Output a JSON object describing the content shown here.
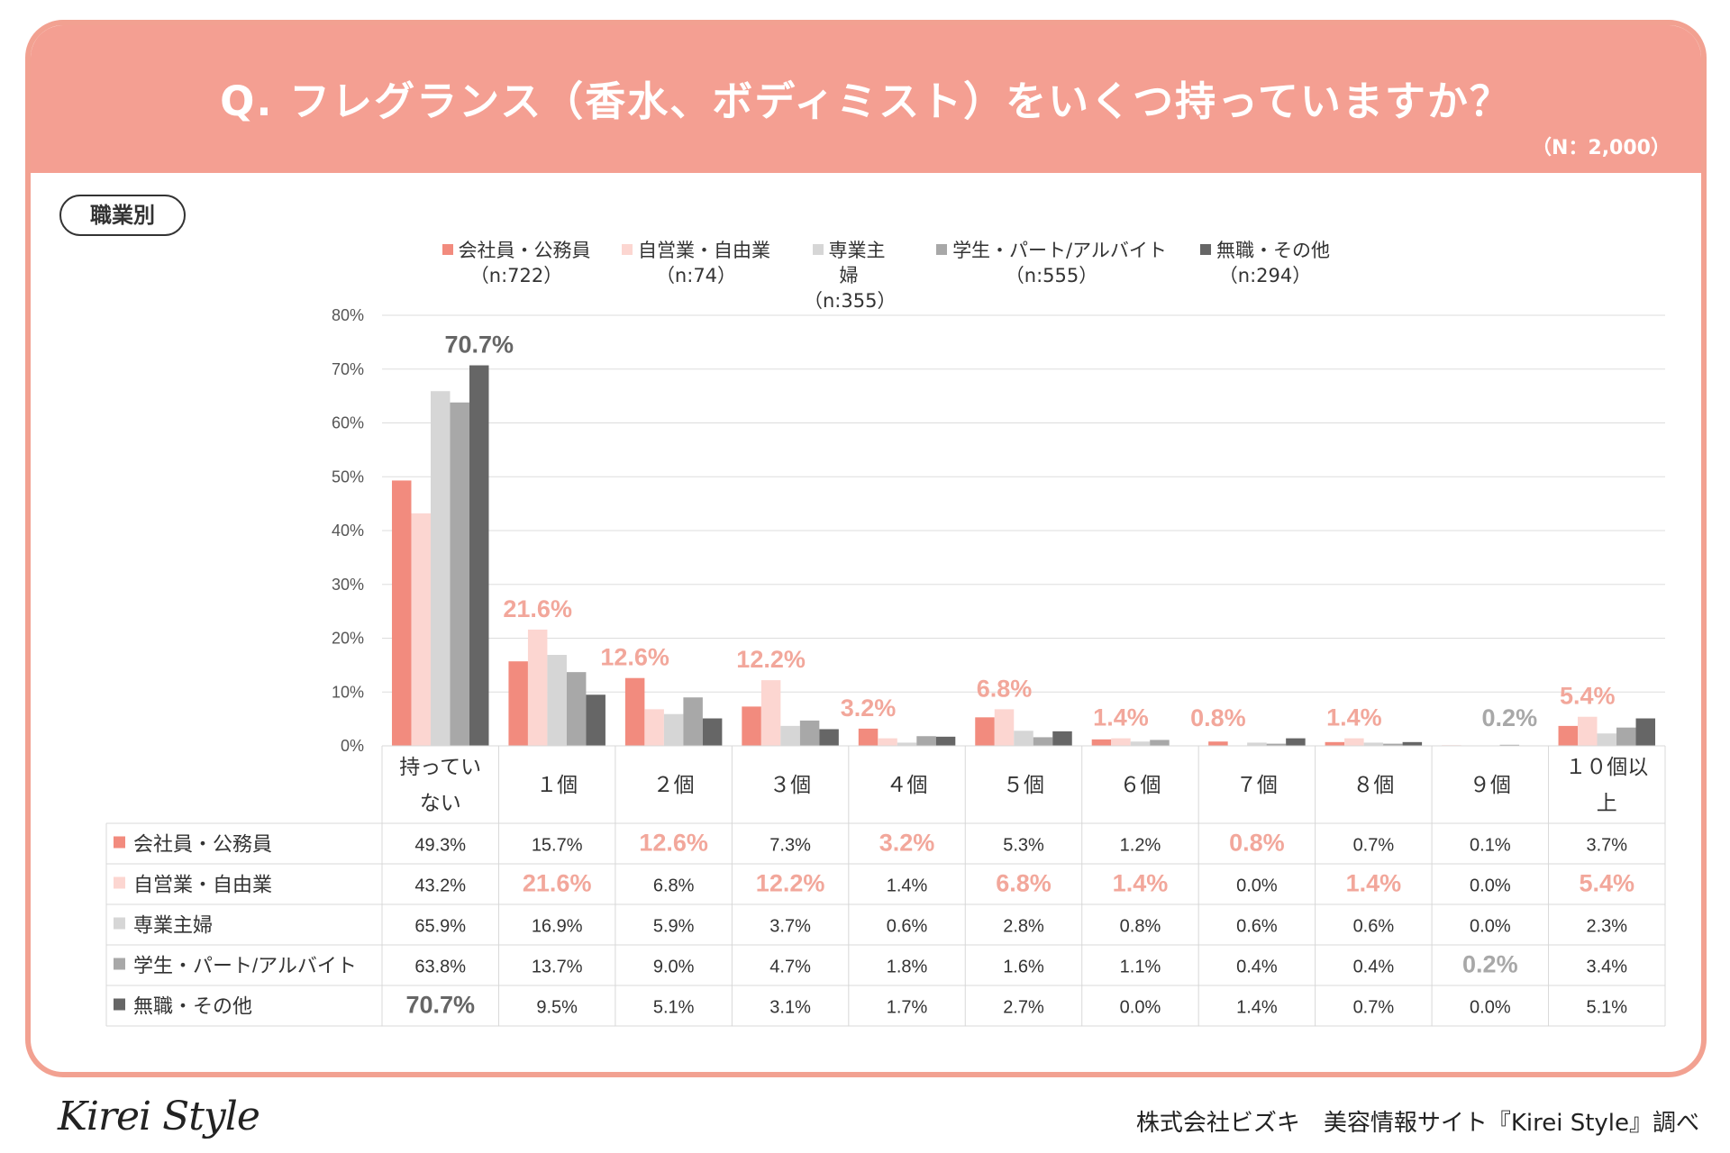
{
  "header": {
    "title": "Q. フレグランス（香水、ボディミスト）をいくつ持っていますか？",
    "n_label": "（N：2,000）",
    "color": "#f49f92"
  },
  "category_pill": "職業別",
  "footer": {
    "logo": "Kirei Style",
    "credit": "株式会社ビズキ　美容情報サイト『Kirei Style』調べ"
  },
  "chart_data": {
    "type": "bar",
    "title": "Q. フレグランス（香水、ボディミスト）をいくつ持っていますか？",
    "ylim": [
      0,
      80
    ],
    "yticks": [
      "0%",
      "10%",
      "20%",
      "30%",
      "40%",
      "50%",
      "60%",
      "70%",
      "80%"
    ],
    "categories": [
      "持ってい\nない",
      "１個",
      "２個",
      "３個",
      "４個",
      "５個",
      "６個",
      "７個",
      "８個",
      "９個",
      "１０個以\n上"
    ],
    "series": [
      {
        "name": "会社員・公務員",
        "n": "（n:722）",
        "color": "#f28b7e",
        "values": [
          49.3,
          15.7,
          12.6,
          7.3,
          3.2,
          5.3,
          1.2,
          0.8,
          0.7,
          0.1,
          3.7
        ],
        "labels": [
          "49.3%",
          "15.7%",
          "12.6%",
          "7.3%",
          "3.2%",
          "5.3%",
          "1.2%",
          "0.8%",
          "0.7%",
          "0.1%",
          "3.7%"
        ]
      },
      {
        "name": "自営業・自由業",
        "n": "（n:74）",
        "color": "#fcd6d1",
        "values": [
          43.2,
          21.6,
          6.8,
          12.2,
          1.4,
          6.8,
          1.4,
          0.0,
          1.4,
          0.0,
          5.4
        ],
        "labels": [
          "43.2%",
          "21.6%",
          "6.8%",
          "12.2%",
          "1.4%",
          "6.8%",
          "1.4%",
          "0.0%",
          "1.4%",
          "0.0%",
          "5.4%"
        ]
      },
      {
        "name": "専業主婦",
        "n": "（n:355）",
        "color": "#d6d6d6",
        "values": [
          65.9,
          16.9,
          5.9,
          3.7,
          0.6,
          2.8,
          0.8,
          0.6,
          0.6,
          0.0,
          2.3
        ],
        "labels": [
          "65.9%",
          "16.9%",
          "5.9%",
          "3.7%",
          "0.6%",
          "2.8%",
          "0.8%",
          "0.6%",
          "0.6%",
          "0.0%",
          "2.3%"
        ]
      },
      {
        "name": "学生・パート/アルバイト",
        "n": "（n:555）",
        "color": "#a8a8a8",
        "values": [
          63.8,
          13.7,
          9.0,
          4.7,
          1.8,
          1.6,
          1.1,
          0.4,
          0.4,
          0.2,
          3.4
        ],
        "labels": [
          "63.8%",
          "13.7%",
          "9.0%",
          "4.7%",
          "1.8%",
          "1.6%",
          "1.1%",
          "0.4%",
          "0.4%",
          "0.2%",
          "3.4%"
        ]
      },
      {
        "name": "無職・その他",
        "n": "（n:294）",
        "color": "#666666",
        "values": [
          70.7,
          9.5,
          5.1,
          3.1,
          1.7,
          2.7,
          0.0,
          1.4,
          0.7,
          0.0,
          5.1
        ],
        "labels": [
          "70.7%",
          "9.5%",
          "5.1%",
          "3.1%",
          "1.7%",
          "2.7%",
          "0.0%",
          "1.4%",
          "0.7%",
          "0.0%",
          "5.1%"
        ]
      }
    ],
    "highlights": [
      {
        "category": 0,
        "series": 4,
        "label": "70.7%",
        "color": "#666666"
      },
      {
        "category": 1,
        "series": 1,
        "label": "21.6%",
        "color": "#f2a79b"
      },
      {
        "category": 2,
        "series": 0,
        "label": "12.6%",
        "color": "#f2a79b"
      },
      {
        "category": 3,
        "series": 1,
        "label": "12.2%",
        "color": "#f2a79b"
      },
      {
        "category": 4,
        "series": 0,
        "label": "3.2%",
        "color": "#f2a79b"
      },
      {
        "category": 5,
        "series": 1,
        "label": "6.8%",
        "color": "#f2a79b"
      },
      {
        "category": 6,
        "series": 1,
        "label": "1.4%",
        "color": "#f2a79b"
      },
      {
        "category": 7,
        "series": 0,
        "label": "0.8%",
        "color": "#f2a79b"
      },
      {
        "category": 8,
        "series": 1,
        "label": "1.4%",
        "color": "#f2a79b"
      },
      {
        "category": 9,
        "series": 3,
        "label": "0.2%",
        "color": "#a8a8a8"
      },
      {
        "category": 10,
        "series": 1,
        "label": "5.4%",
        "color": "#f2a79b"
      }
    ],
    "legend_position": "top",
    "grid": true
  }
}
